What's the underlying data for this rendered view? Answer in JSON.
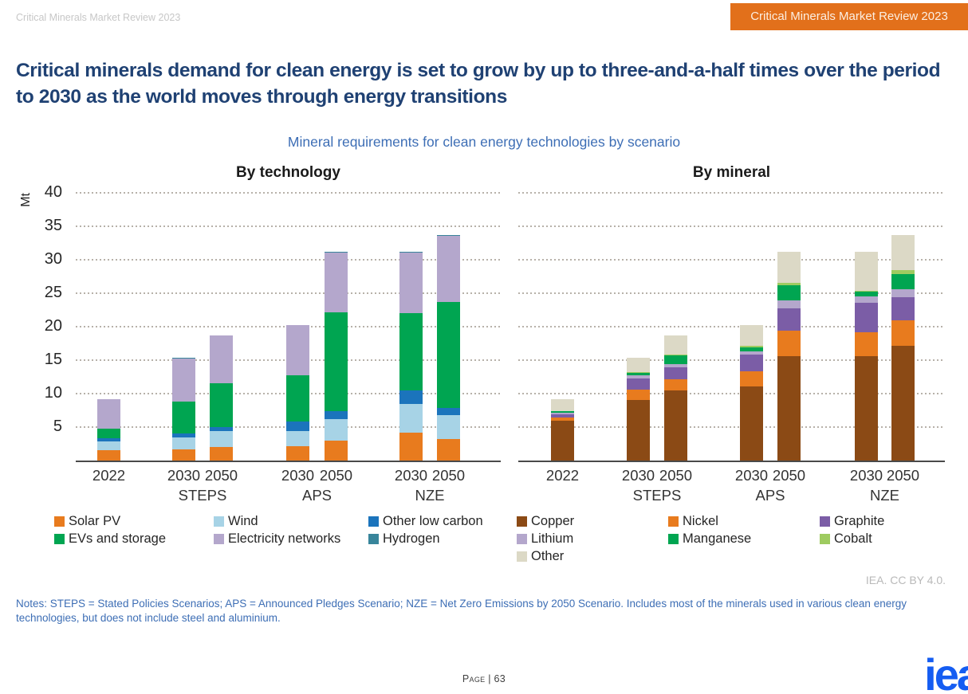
{
  "header": {
    "watermark": "Critical Minerals Market Review 2023",
    "badge": "Critical Minerals Market Review 2023"
  },
  "headline": "Critical minerals demand for clean energy is set to grow by up to three-and-a-half times over the period to 2030 as the world moves through energy transitions",
  "chart_title": "Mineral requirements for clean energy technologies by scenario",
  "axis": {
    "unit": "Mt",
    "ymax": 40,
    "ticks": [
      40,
      35,
      30,
      25,
      20,
      15,
      10,
      5
    ]
  },
  "chart_data": [
    {
      "type": "bar",
      "stacked": true,
      "title": "By technology",
      "ylabel": "Mt",
      "ylim": [
        0,
        40
      ],
      "grid": "dotted-horizontal",
      "legend_position": "bottom",
      "categories": [
        "2022",
        "STEPS 2030",
        "STEPS 2050",
        "APS 2030",
        "APS 2050",
        "NZE 2030",
        "NZE 2050"
      ],
      "groups": [
        {
          "scenario": "",
          "years": [
            "2022"
          ]
        },
        {
          "scenario": "STEPS",
          "years": [
            "2030",
            "2050"
          ]
        },
        {
          "scenario": "APS",
          "years": [
            "2030",
            "2050"
          ]
        },
        {
          "scenario": "NZE",
          "years": [
            "2030",
            "2050"
          ]
        }
      ],
      "series": [
        {
          "name": "Solar PV",
          "color": "#e87b1e",
          "values": [
            1.6,
            1.7,
            2.0,
            2.1,
            3.0,
            4.2,
            3.2
          ]
        },
        {
          "name": "Wind",
          "color": "#a7d3e6",
          "values": [
            1.2,
            1.7,
            2.4,
            2.3,
            3.2,
            4.3,
            3.6
          ]
        },
        {
          "name": "Other low carbon",
          "color": "#1b74bc",
          "values": [
            0.5,
            0.6,
            0.6,
            1.4,
            1.2,
            2.0,
            1.1
          ]
        },
        {
          "name": "EVs and storage",
          "color": "#00a551",
          "values": [
            1.5,
            4.8,
            6.6,
            6.9,
            14.7,
            11.5,
            15.8
          ]
        },
        {
          "name": "Electricity networks",
          "color": "#b4a7cc",
          "values": [
            4.4,
            6.5,
            7.1,
            7.5,
            9.0,
            9.1,
            9.9
          ]
        },
        {
          "name": "Hydrogen",
          "color": "#38859b",
          "values": [
            0.0,
            0.05,
            0.05,
            0.1,
            0.1,
            0.1,
            0.1
          ]
        }
      ]
    },
    {
      "type": "bar",
      "stacked": true,
      "title": "By mineral",
      "ylabel": "Mt",
      "ylim": [
        0,
        40
      ],
      "grid": "dotted-horizontal",
      "legend_position": "bottom",
      "categories": [
        "2022",
        "STEPS 2030",
        "STEPS 2050",
        "APS 2030",
        "APS 2050",
        "NZE 2030",
        "NZE 2050"
      ],
      "groups": [
        {
          "scenario": "",
          "years": [
            "2022"
          ]
        },
        {
          "scenario": "STEPS",
          "years": [
            "2030",
            "2050"
          ]
        },
        {
          "scenario": "APS",
          "years": [
            "2030",
            "2050"
          ]
        },
        {
          "scenario": "NZE",
          "years": [
            "2030",
            "2050"
          ]
        }
      ],
      "series": [
        {
          "name": "Copper",
          "color": "#8b4a15",
          "values": [
            5.9,
            9.1,
            10.5,
            11.1,
            15.6,
            15.6,
            17.2
          ]
        },
        {
          "name": "Nickel",
          "color": "#e87b1e",
          "values": [
            0.5,
            1.5,
            1.7,
            2.2,
            3.8,
            3.6,
            3.7
          ]
        },
        {
          "name": "Graphite",
          "color": "#7b5da6",
          "values": [
            0.5,
            1.7,
            1.7,
            2.5,
            3.3,
            4.4,
            3.5
          ]
        },
        {
          "name": "Lithium",
          "color": "#b4a7cc",
          "values": [
            0.3,
            0.4,
            0.5,
            0.5,
            1.2,
            0.9,
            1.2
          ]
        },
        {
          "name": "Manganese",
          "color": "#00a551",
          "values": [
            0.15,
            0.4,
            1.3,
            0.6,
            2.3,
            0.7,
            2.3
          ]
        },
        {
          "name": "Cobalt",
          "color": "#9ecb60",
          "values": [
            0.05,
            0.15,
            0.15,
            0.2,
            0.3,
            0.2,
            0.5
          ]
        },
        {
          "name": "Other",
          "color": "#dcd9c6",
          "values": [
            1.8,
            2.1,
            2.9,
            3.2,
            4.7,
            5.8,
            5.3
          ]
        }
      ]
    }
  ],
  "attribution": "IEA. CC BY 4.0.",
  "notes": "Notes: STEPS = Stated Policies Scenarios; APS = Announced Pledges Scenario; NZE = Net Zero Emissions by 2050 Scenario. Includes most of the minerals used in various clean energy technologies, but does not include steel and aluminium.",
  "footer": {
    "page_label": "Page | 63",
    "logo": "iea"
  }
}
